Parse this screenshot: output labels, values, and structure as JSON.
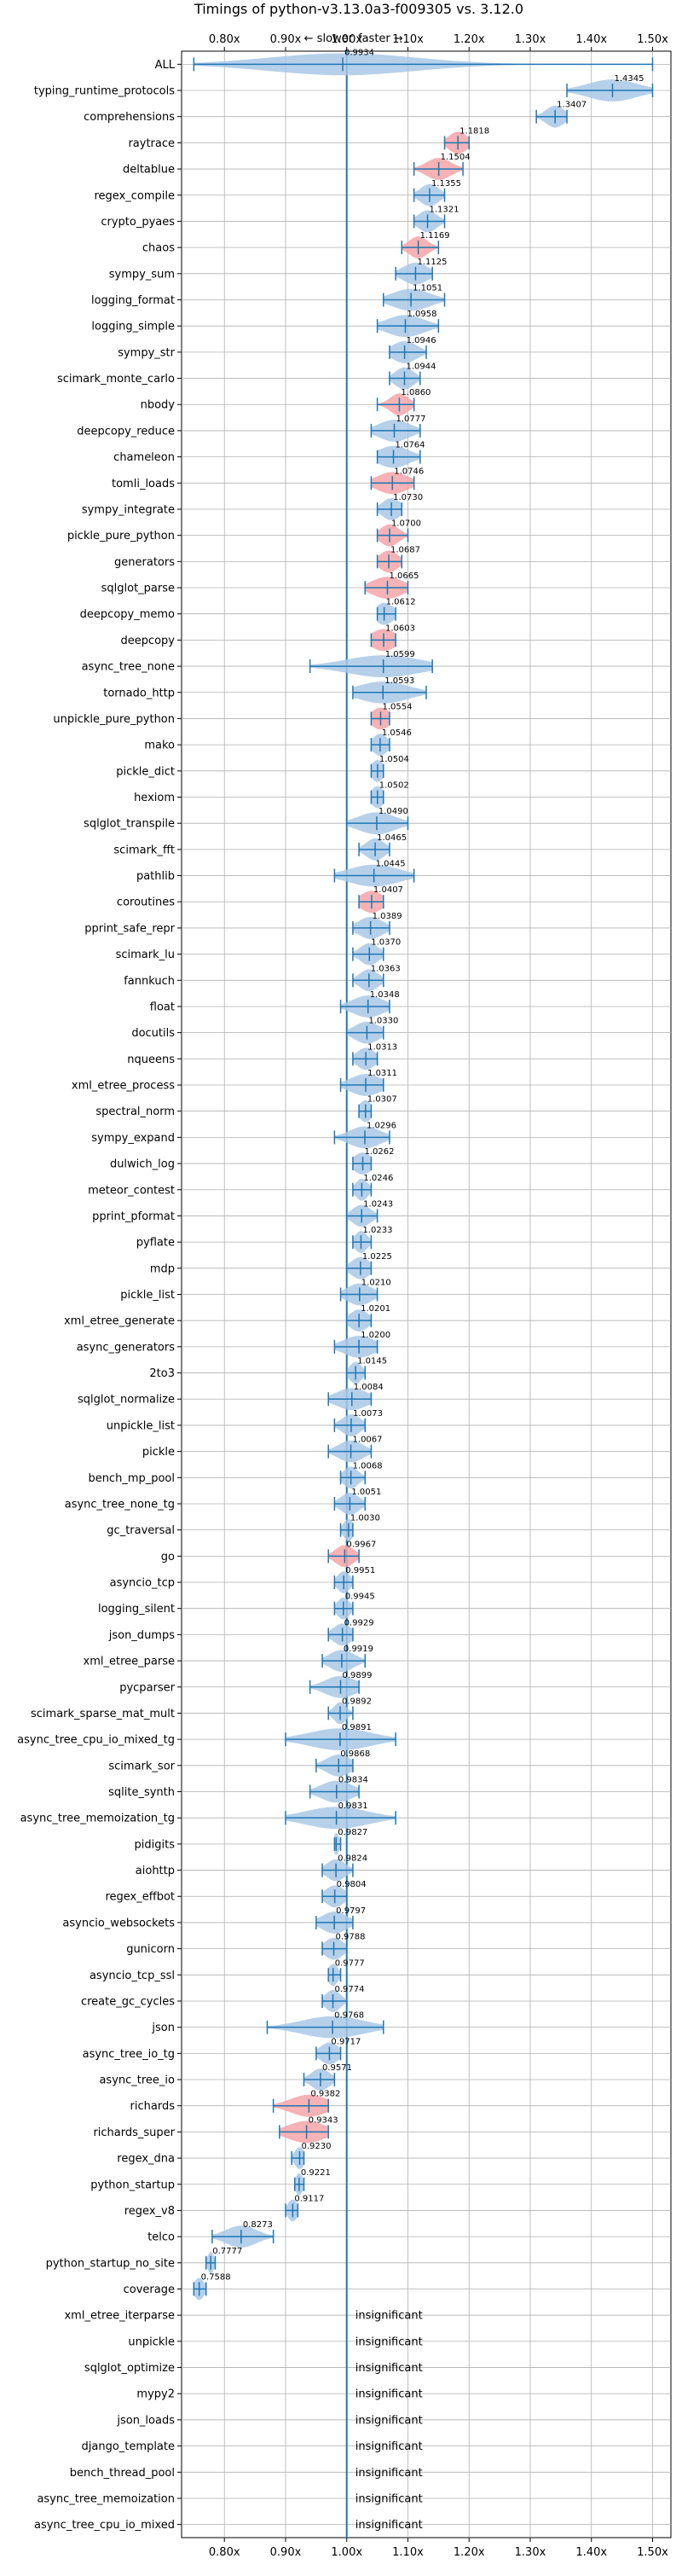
{
  "chart_data": {
    "type": "violin",
    "title": "Timings of python-v3.13.0a3-f009305 vs. 3.12.0",
    "direction": {
      "slower": "← slower",
      "faster": "faster →"
    },
    "xlim": [
      0.73,
      1.53
    ],
    "x_ticks": [
      0.8,
      0.9,
      1.0,
      1.1,
      1.2,
      1.3,
      1.4,
      1.5
    ],
    "x_tick_labels": [
      "0.80x",
      "0.90x",
      "1.00x",
      "1.10x",
      "1.20x",
      "1.30x",
      "1.40x",
      "1.50x"
    ],
    "reference_line": 1.0,
    "grid": true,
    "insignificant_text": "insignificant",
    "colors": {
      "normal": "#a9c8e6",
      "highlight": "#f4a5a8",
      "line": "#1f77b4"
    },
    "benchmarks": [
      {
        "name": "ALL",
        "value": 0.9934,
        "lo": 0.75,
        "hi": 1.5,
        "spread": 0.12,
        "highlight": false
      },
      {
        "name": "typing_runtime_protocols",
        "value": 1.4345,
        "lo": 1.36,
        "hi": 1.5,
        "spread": 0.04,
        "highlight": false
      },
      {
        "name": "comprehensions",
        "value": 1.3407,
        "lo": 1.31,
        "hi": 1.36,
        "spread": 0.015,
        "highlight": false
      },
      {
        "name": "raytrace",
        "value": 1.1818,
        "lo": 1.16,
        "hi": 1.2,
        "spread": 0.015,
        "highlight": true
      },
      {
        "name": "deltablue",
        "value": 1.1504,
        "lo": 1.11,
        "hi": 1.19,
        "spread": 0.02,
        "highlight": true
      },
      {
        "name": "regex_compile",
        "value": 1.1355,
        "lo": 1.11,
        "hi": 1.16,
        "spread": 0.015,
        "highlight": false
      },
      {
        "name": "crypto_pyaes",
        "value": 1.1321,
        "lo": 1.11,
        "hi": 1.16,
        "spread": 0.015,
        "highlight": false
      },
      {
        "name": "chaos",
        "value": 1.1169,
        "lo": 1.09,
        "hi": 1.15,
        "spread": 0.015,
        "highlight": true
      },
      {
        "name": "sympy_sum",
        "value": 1.1125,
        "lo": 1.08,
        "hi": 1.14,
        "spread": 0.02,
        "highlight": false
      },
      {
        "name": "logging_format",
        "value": 1.1051,
        "lo": 1.06,
        "hi": 1.16,
        "spread": 0.03,
        "highlight": false
      },
      {
        "name": "logging_simple",
        "value": 1.0958,
        "lo": 1.05,
        "hi": 1.15,
        "spread": 0.03,
        "highlight": false
      },
      {
        "name": "sympy_str",
        "value": 1.0946,
        "lo": 1.07,
        "hi": 1.13,
        "spread": 0.02,
        "highlight": false
      },
      {
        "name": "scimark_monte_carlo",
        "value": 1.0944,
        "lo": 1.07,
        "hi": 1.12,
        "spread": 0.015,
        "highlight": false
      },
      {
        "name": "nbody",
        "value": 1.086,
        "lo": 1.05,
        "hi": 1.11,
        "spread": 0.015,
        "highlight": true
      },
      {
        "name": "deepcopy_reduce",
        "value": 1.0777,
        "lo": 1.04,
        "hi": 1.12,
        "spread": 0.025,
        "highlight": false
      },
      {
        "name": "chameleon",
        "value": 1.0764,
        "lo": 1.05,
        "hi": 1.12,
        "spread": 0.025,
        "highlight": false
      },
      {
        "name": "tomli_loads",
        "value": 1.0746,
        "lo": 1.04,
        "hi": 1.11,
        "spread": 0.025,
        "highlight": true
      },
      {
        "name": "sympy_integrate",
        "value": 1.073,
        "lo": 1.05,
        "hi": 1.09,
        "spread": 0.015,
        "highlight": false
      },
      {
        "name": "pickle_pure_python",
        "value": 1.07,
        "lo": 1.05,
        "hi": 1.1,
        "spread": 0.015,
        "highlight": true
      },
      {
        "name": "generators",
        "value": 1.0687,
        "lo": 1.05,
        "hi": 1.09,
        "spread": 0.015,
        "highlight": true
      },
      {
        "name": "sqlglot_parse",
        "value": 1.0665,
        "lo": 1.03,
        "hi": 1.1,
        "spread": 0.025,
        "highlight": true
      },
      {
        "name": "deepcopy_memo",
        "value": 1.0612,
        "lo": 1.05,
        "hi": 1.08,
        "spread": 0.015,
        "highlight": false
      },
      {
        "name": "deepcopy",
        "value": 1.0603,
        "lo": 1.04,
        "hi": 1.08,
        "spread": 0.02,
        "highlight": true
      },
      {
        "name": "async_tree_none",
        "value": 1.0599,
        "lo": 0.94,
        "hi": 1.14,
        "spread": 0.06,
        "highlight": false
      },
      {
        "name": "tornado_http",
        "value": 1.0593,
        "lo": 1.01,
        "hi": 1.13,
        "spread": 0.04,
        "highlight": false
      },
      {
        "name": "unpickle_pure_python",
        "value": 1.0554,
        "lo": 1.04,
        "hi": 1.07,
        "spread": 0.015,
        "highlight": true
      },
      {
        "name": "mako",
        "value": 1.0546,
        "lo": 1.04,
        "hi": 1.07,
        "spread": 0.012,
        "highlight": false
      },
      {
        "name": "pickle_dict",
        "value": 1.0504,
        "lo": 1.04,
        "hi": 1.06,
        "spread": 0.01,
        "highlight": false
      },
      {
        "name": "hexiom",
        "value": 1.0502,
        "lo": 1.04,
        "hi": 1.06,
        "spread": 0.01,
        "highlight": false
      },
      {
        "name": "sqlglot_transpile",
        "value": 1.049,
        "lo": 1.0,
        "hi": 1.1,
        "spread": 0.03,
        "highlight": false
      },
      {
        "name": "scimark_fft",
        "value": 1.0465,
        "lo": 1.02,
        "hi": 1.07,
        "spread": 0.015,
        "highlight": false
      },
      {
        "name": "pathlib",
        "value": 1.0445,
        "lo": 0.98,
        "hi": 1.11,
        "spread": 0.04,
        "highlight": false
      },
      {
        "name": "coroutines",
        "value": 1.0407,
        "lo": 1.02,
        "hi": 1.06,
        "spread": 0.018,
        "highlight": true
      },
      {
        "name": "pprint_safe_repr",
        "value": 1.0389,
        "lo": 1.01,
        "hi": 1.07,
        "spread": 0.02,
        "highlight": false
      },
      {
        "name": "scimark_lu",
        "value": 1.037,
        "lo": 1.01,
        "hi": 1.06,
        "spread": 0.015,
        "highlight": false
      },
      {
        "name": "fannkuch",
        "value": 1.0363,
        "lo": 1.01,
        "hi": 1.06,
        "spread": 0.015,
        "highlight": false
      },
      {
        "name": "float",
        "value": 1.0348,
        "lo": 0.99,
        "hi": 1.07,
        "spread": 0.025,
        "highlight": false
      },
      {
        "name": "docutils",
        "value": 1.033,
        "lo": 1.0,
        "hi": 1.06,
        "spread": 0.02,
        "highlight": false
      },
      {
        "name": "nqueens",
        "value": 1.0313,
        "lo": 1.01,
        "hi": 1.05,
        "spread": 0.015,
        "highlight": false
      },
      {
        "name": "xml_etree_process",
        "value": 1.0311,
        "lo": 0.99,
        "hi": 1.06,
        "spread": 0.025,
        "highlight": false
      },
      {
        "name": "spectral_norm",
        "value": 1.0307,
        "lo": 1.02,
        "hi": 1.04,
        "spread": 0.01,
        "highlight": false
      },
      {
        "name": "sympy_expand",
        "value": 1.0296,
        "lo": 0.98,
        "hi": 1.07,
        "spread": 0.025,
        "highlight": false
      },
      {
        "name": "dulwich_log",
        "value": 1.0262,
        "lo": 1.01,
        "hi": 1.04,
        "spread": 0.015,
        "highlight": false
      },
      {
        "name": "meteor_contest",
        "value": 1.0246,
        "lo": 1.01,
        "hi": 1.04,
        "spread": 0.01,
        "highlight": false
      },
      {
        "name": "pprint_pformat",
        "value": 1.0243,
        "lo": 1.0,
        "hi": 1.05,
        "spread": 0.015,
        "highlight": false
      },
      {
        "name": "pyflate",
        "value": 1.0233,
        "lo": 1.01,
        "hi": 1.04,
        "spread": 0.01,
        "highlight": false
      },
      {
        "name": "mdp",
        "value": 1.0225,
        "lo": 1.0,
        "hi": 1.04,
        "spread": 0.015,
        "highlight": false
      },
      {
        "name": "pickle_list",
        "value": 1.021,
        "lo": 0.99,
        "hi": 1.05,
        "spread": 0.02,
        "highlight": false
      },
      {
        "name": "xml_etree_generate",
        "value": 1.0201,
        "lo": 1.0,
        "hi": 1.04,
        "spread": 0.015,
        "highlight": false
      },
      {
        "name": "async_generators",
        "value": 1.02,
        "lo": 0.98,
        "hi": 1.05,
        "spread": 0.025,
        "highlight": false
      },
      {
        "name": "2to3",
        "value": 1.0145,
        "lo": 1.0,
        "hi": 1.03,
        "spread": 0.01,
        "highlight": false
      },
      {
        "name": "sqlglot_normalize",
        "value": 1.0084,
        "lo": 0.97,
        "hi": 1.04,
        "spread": 0.025,
        "highlight": false
      },
      {
        "name": "unpickle_list",
        "value": 1.0073,
        "lo": 0.98,
        "hi": 1.03,
        "spread": 0.015,
        "highlight": false
      },
      {
        "name": "pickle",
        "value": 1.0067,
        "lo": 0.97,
        "hi": 1.04,
        "spread": 0.02,
        "highlight": false
      },
      {
        "name": "bench_mp_pool",
        "value": 1.0068,
        "lo": 0.99,
        "hi": 1.03,
        "spread": 0.012,
        "highlight": false
      },
      {
        "name": "async_tree_none_tg",
        "value": 1.0051,
        "lo": 0.98,
        "hi": 1.03,
        "spread": 0.015,
        "highlight": false
      },
      {
        "name": "gc_traversal",
        "value": 1.003,
        "lo": 0.99,
        "hi": 1.01,
        "spread": 0.008,
        "highlight": false
      },
      {
        "name": "go",
        "value": 0.9967,
        "lo": 0.97,
        "hi": 1.02,
        "spread": 0.015,
        "highlight": true
      },
      {
        "name": "asyncio_tcp",
        "value": 0.9951,
        "lo": 0.98,
        "hi": 1.01,
        "spread": 0.01,
        "highlight": false
      },
      {
        "name": "logging_silent",
        "value": 0.9945,
        "lo": 0.98,
        "hi": 1.01,
        "spread": 0.01,
        "highlight": false
      },
      {
        "name": "json_dumps",
        "value": 0.9929,
        "lo": 0.97,
        "hi": 1.01,
        "spread": 0.015,
        "highlight": false
      },
      {
        "name": "xml_etree_parse",
        "value": 0.9919,
        "lo": 0.96,
        "hi": 1.03,
        "spread": 0.02,
        "highlight": false
      },
      {
        "name": "pycparser",
        "value": 0.9899,
        "lo": 0.94,
        "hi": 1.02,
        "spread": 0.025,
        "highlight": false
      },
      {
        "name": "scimark_sparse_mat_mult",
        "value": 0.9892,
        "lo": 0.97,
        "hi": 1.01,
        "spread": 0.01,
        "highlight": false
      },
      {
        "name": "async_tree_cpu_io_mixed_tg",
        "value": 0.9891,
        "lo": 0.9,
        "hi": 1.08,
        "spread": 0.05,
        "highlight": false
      },
      {
        "name": "scimark_sor",
        "value": 0.9868,
        "lo": 0.95,
        "hi": 1.01,
        "spread": 0.02,
        "highlight": false
      },
      {
        "name": "sqlite_synth",
        "value": 0.9834,
        "lo": 0.94,
        "hi": 1.02,
        "spread": 0.025,
        "highlight": false
      },
      {
        "name": "async_tree_memoization_tg",
        "value": 0.9831,
        "lo": 0.9,
        "hi": 1.08,
        "spread": 0.05,
        "highlight": false
      },
      {
        "name": "pidigits",
        "value": 0.9827,
        "lo": 0.98,
        "hi": 0.99,
        "spread": 0.005,
        "highlight": false
      },
      {
        "name": "aiohttp",
        "value": 0.9824,
        "lo": 0.96,
        "hi": 1.01,
        "spread": 0.015,
        "highlight": false
      },
      {
        "name": "regex_effbot",
        "value": 0.9804,
        "lo": 0.96,
        "hi": 1.0,
        "spread": 0.015,
        "highlight": false
      },
      {
        "name": "asyncio_websockets",
        "value": 0.9797,
        "lo": 0.95,
        "hi": 1.01,
        "spread": 0.02,
        "highlight": false
      },
      {
        "name": "gunicorn",
        "value": 0.9788,
        "lo": 0.96,
        "hi": 1.0,
        "spread": 0.015,
        "highlight": false
      },
      {
        "name": "asyncio_tcp_ssl",
        "value": 0.9777,
        "lo": 0.97,
        "hi": 0.99,
        "spread": 0.008,
        "highlight": false
      },
      {
        "name": "create_gc_cycles",
        "value": 0.9774,
        "lo": 0.96,
        "hi": 1.0,
        "spread": 0.012,
        "highlight": false
      },
      {
        "name": "json",
        "value": 0.9768,
        "lo": 0.87,
        "hi": 1.06,
        "spread": 0.05,
        "highlight": false
      },
      {
        "name": "async_tree_io_tg",
        "value": 0.9717,
        "lo": 0.95,
        "hi": 0.99,
        "spread": 0.015,
        "highlight": false
      },
      {
        "name": "async_tree_io",
        "value": 0.9571,
        "lo": 0.93,
        "hi": 0.98,
        "spread": 0.015,
        "highlight": false
      },
      {
        "name": "richards",
        "value": 0.9382,
        "lo": 0.88,
        "hi": 0.97,
        "spread": 0.03,
        "highlight": true
      },
      {
        "name": "richards_super",
        "value": 0.9343,
        "lo": 0.89,
        "hi": 0.97,
        "spread": 0.03,
        "highlight": true
      },
      {
        "name": "regex_dna",
        "value": 0.923,
        "lo": 0.91,
        "hi": 0.93,
        "spread": 0.008,
        "highlight": false
      },
      {
        "name": "python_startup",
        "value": 0.9221,
        "lo": 0.915,
        "hi": 0.93,
        "spread": 0.006,
        "highlight": false
      },
      {
        "name": "regex_v8",
        "value": 0.9117,
        "lo": 0.9,
        "hi": 0.92,
        "spread": 0.008,
        "highlight": false
      },
      {
        "name": "telco",
        "value": 0.8273,
        "lo": 0.78,
        "hi": 0.88,
        "spread": 0.025,
        "highlight": false
      },
      {
        "name": "python_startup_no_site",
        "value": 0.7777,
        "lo": 0.77,
        "hi": 0.785,
        "spread": 0.005,
        "highlight": false
      },
      {
        "name": "coverage",
        "value": 0.7588,
        "lo": 0.75,
        "hi": 0.77,
        "spread": 0.008,
        "highlight": false
      },
      {
        "name": "xml_etree_iterparse",
        "value": null,
        "insignificant": true
      },
      {
        "name": "unpickle",
        "value": null,
        "insignificant": true
      },
      {
        "name": "sqlglot_optimize",
        "value": null,
        "insignificant": true
      },
      {
        "name": "mypy2",
        "value": null,
        "insignificant": true
      },
      {
        "name": "json_loads",
        "value": null,
        "insignificant": true
      },
      {
        "name": "django_template",
        "value": null,
        "insignificant": true
      },
      {
        "name": "bench_thread_pool",
        "value": null,
        "insignificant": true
      },
      {
        "name": "async_tree_memoization",
        "value": null,
        "insignificant": true
      },
      {
        "name": "async_tree_cpu_io_mixed",
        "value": null,
        "insignificant": true
      }
    ]
  }
}
